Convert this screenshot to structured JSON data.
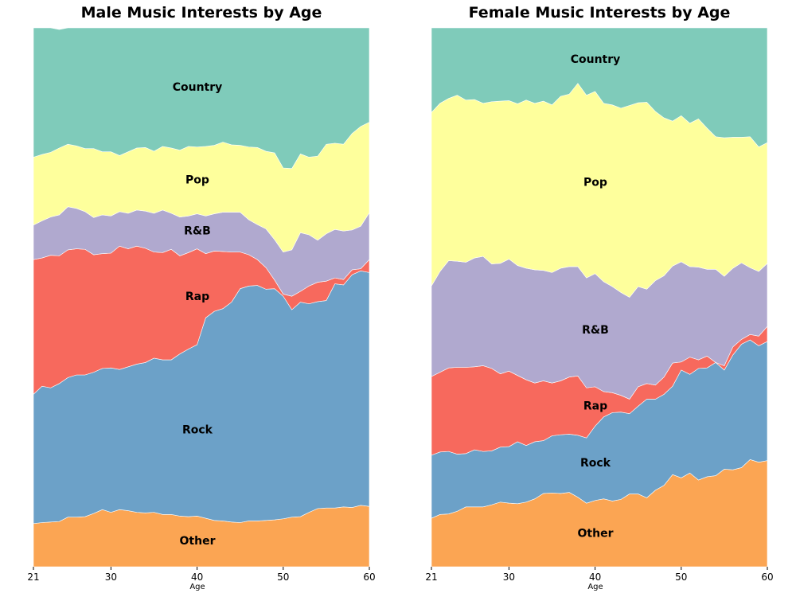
{
  "chart_data": [
    {
      "type": "area",
      "stacked": "percent",
      "title": "Male Music Interests by Age",
      "xlabel": "Age",
      "ylabel": "",
      "xlim": [
        21,
        60
      ],
      "xticks": [
        21,
        30,
        40,
        50,
        60
      ],
      "ylim": [
        0,
        100
      ],
      "x": [
        21,
        22,
        23,
        24,
        25,
        26,
        27,
        28,
        29,
        30,
        31,
        32,
        33,
        34,
        35,
        36,
        37,
        38,
        39,
        40,
        41,
        42,
        43,
        44,
        45,
        46,
        47,
        48,
        49,
        50,
        51,
        52,
        53,
        54,
        55,
        56,
        57,
        58,
        59,
        60
      ],
      "series": [
        {
          "name": "Other",
          "label": "Other",
          "color": "#fba553",
          "values": [
            8.0,
            8.2,
            8.3,
            8.4,
            9.2,
            9.2,
            9.3,
            9.9,
            10.6,
            10.1,
            10.6,
            10.4,
            10.1,
            10.0,
            10.1,
            9.7,
            9.7,
            9.4,
            9.3,
            9.4,
            9.0,
            8.6,
            8.5,
            8.3,
            8.2,
            8.5,
            8.5,
            8.6,
            8.7,
            8.9,
            9.2,
            9.3,
            10.1,
            10.8,
            10.9,
            10.9,
            11.1,
            11.0,
            11.4,
            11.2
          ]
        },
        {
          "name": "Rock",
          "label": "Rock",
          "color": "#6ca1c8",
          "values": [
            24.0,
            25.3,
            24.9,
            25.6,
            25.9,
            26.4,
            26.3,
            26.2,
            26.2,
            26.8,
            26.0,
            26.7,
            27.5,
            27.9,
            28.6,
            28.7,
            28.7,
            30.1,
            31.1,
            31.8,
            37.2,
            38.8,
            39.4,
            40.8,
            43.4,
            43.6,
            43.7,
            42.9,
            42.9,
            41.3,
            38.5,
            39.8,
            38.7,
            38.4,
            38.5,
            41.6,
            41.2,
            43.2,
            43.5,
            43.4
          ]
        },
        {
          "name": "Rap",
          "label": "Rap",
          "color": "#f7695d",
          "values": [
            25.0,
            23.8,
            24.6,
            23.7,
            23.7,
            23.4,
            23.3,
            21.8,
            21.3,
            21.3,
            22.9,
            21.9,
            21.9,
            21.2,
            19.7,
            19.9,
            20.5,
            18.2,
            17.9,
            17.8,
            11.9,
            11.2,
            10.6,
            9.3,
            6.8,
            5.8,
            4.8,
            4.0,
            1.6,
            0.4,
            2.5,
            2.0,
            3.3,
            3.6,
            3.6,
            1.1,
            1.0,
            0.9,
            0.4,
            2.4
          ]
        },
        {
          "name": "R&B",
          "label": "R&B",
          "color": "#b0a9cf",
          "values": [
            6.4,
            6.9,
            7.1,
            7.6,
            8.0,
            7.5,
            7.0,
            6.9,
            7.2,
            6.9,
            6.4,
            6.6,
            6.7,
            6.9,
            7.2,
            7.9,
            6.7,
            7.2,
            6.8,
            6.5,
            7.0,
            6.9,
            7.3,
            7.4,
            7.4,
            6.5,
            6.5,
            7.2,
            7.5,
            7.8,
            8.6,
            10.9,
            9.5,
            7.8,
            8.8,
            9.0,
            9.0,
            7.4,
            7.9,
            8.7
          ]
        },
        {
          "name": "Pop",
          "label": "Pop",
          "color": "#feff9c",
          "values": [
            12.6,
            12.3,
            12.0,
            12.4,
            11.6,
            11.6,
            11.7,
            12.8,
            11.7,
            11.9,
            10.4,
            11.4,
            11.5,
            11.8,
            11.5,
            11.8,
            12.1,
            12.4,
            12.9,
            12.4,
            12.9,
            12.7,
            13.0,
            12.5,
            12.4,
            13.5,
            14.3,
            14.4,
            16.1,
            15.6,
            15.1,
            14.6,
            14.4,
            15.6,
            16.6,
            16.0,
            16.1,
            17.9,
            18.5,
            16.8
          ]
        },
        {
          "name": "Country",
          "label": "Country",
          "color": "#7fcbba",
          "values": [
            24.0,
            23.5,
            23.1,
            22.0,
            21.6,
            21.9,
            22.4,
            22.4,
            23.0,
            23.0,
            23.7,
            23.0,
            22.3,
            22.2,
            22.9,
            22.0,
            22.3,
            22.7,
            22.0,
            22.1,
            22.0,
            21.8,
            21.2,
            21.7,
            21.8,
            22.1,
            22.2,
            22.9,
            23.2,
            26.0,
            26.1,
            23.4,
            24.0,
            23.8,
            21.6,
            21.4,
            21.6,
            19.6,
            18.3,
            17.5
          ]
        }
      ]
    },
    {
      "type": "area",
      "stacked": "percent",
      "title": "Female Music Interests by Age",
      "xlabel": "Age",
      "ylabel": "",
      "xlim": [
        21,
        60
      ],
      "xticks": [
        21,
        30,
        40,
        50,
        60
      ],
      "ylim": [
        0,
        100
      ],
      "x": [
        21,
        22,
        23,
        24,
        25,
        26,
        27,
        28,
        29,
        30,
        31,
        32,
        33,
        34,
        35,
        36,
        37,
        38,
        39,
        40,
        41,
        42,
        43,
        44,
        45,
        46,
        47,
        48,
        49,
        50,
        51,
        52,
        53,
        54,
        55,
        56,
        57,
        58,
        59,
        60
      ],
      "series": [
        {
          "name": "Other",
          "label": "Other",
          "color": "#fba553",
          "values": [
            9.0,
            9.7,
            9.8,
            10.3,
            11.1,
            11.1,
            11.1,
            11.5,
            12.0,
            11.8,
            11.7,
            12.0,
            12.6,
            13.6,
            13.7,
            13.6,
            13.8,
            12.9,
            11.8,
            12.3,
            12.6,
            12.2,
            12.5,
            13.5,
            13.5,
            12.8,
            14.2,
            15.1,
            17.1,
            16.5,
            17.4,
            16.1,
            16.7,
            16.9,
            18.1,
            18.0,
            18.4,
            19.9,
            19.4,
            19.7
          ]
        },
        {
          "name": "Rock",
          "label": "Rock",
          "color": "#6ca1c8",
          "values": [
            11.7,
            11.6,
            11.6,
            10.6,
            9.9,
            10.6,
            10.3,
            10.0,
            10.2,
            10.5,
            11.5,
            10.5,
            10.6,
            9.8,
            10.6,
            10.9,
            10.8,
            11.5,
            12.1,
            13.8,
            15.2,
            16.4,
            16.2,
            14.9,
            16.3,
            18.3,
            16.9,
            16.9,
            16.4,
            20.0,
            18.3,
            20.7,
            20.2,
            21.0,
            18.4,
            21.3,
            22.9,
            22.2,
            21.6,
            22.1
          ]
        },
        {
          "name": "Rap",
          "label": "Rap",
          "color": "#f7695d",
          "values": [
            14.6,
            14.8,
            15.5,
            16.1,
            16.0,
            15.4,
            15.9,
            15.3,
            13.6,
            14.0,
            12.3,
            12.2,
            10.9,
            11.1,
            9.8,
            10.0,
            10.6,
            11.0,
            9.3,
            7.3,
            4.7,
            3.7,
            3.1,
            2.7,
            3.6,
            2.9,
            2.6,
            3.2,
            4.3,
            1.5,
            3.2,
            1.6,
            2.2,
            0.0,
            0.8,
            1.5,
            0.9,
            1.0,
            1.8,
            2.8
          ]
        },
        {
          "name": "R&B",
          "label": "R&B",
          "color": "#b0a9cf",
          "values": [
            16.8,
            18.7,
            19.9,
            19.7,
            19.5,
            20.2,
            20.3,
            19.4,
            20.5,
            20.8,
            20.4,
            20.7,
            21.0,
            20.5,
            20.5,
            20.9,
            20.5,
            20.3,
            20.4,
            21.0,
            20.4,
            19.7,
            19.1,
            18.9,
            18.6,
            17.5,
            19.4,
            18.8,
            18.0,
            18.6,
            16.8,
            17.2,
            16.1,
            17.3,
            16.6,
            14.6,
            14.2,
            12.4,
            12.0,
            11.7
          ]
        },
        {
          "name": "Pop",
          "label": "Pop",
          "color": "#feff9c",
          "values": [
            32.2,
            31.2,
            30.1,
            30.8,
            30.1,
            29.4,
            28.4,
            30.1,
            30.1,
            29.4,
            30.0,
            31.2,
            30.9,
            31.4,
            31.1,
            31.9,
            32.0,
            34.0,
            33.9,
            33.8,
            33.1,
            33.7,
            34.2,
            35.6,
            34.1,
            34.7,
            31.4,
            29.3,
            26.9,
            27.1,
            26.6,
            27.5,
            26.2,
            24.6,
            25.7,
            24.3,
            23.3,
            24.3,
            23.1,
            22.4
          ]
        },
        {
          "name": "Country",
          "label": "Country",
          "color": "#7fcbba",
          "values": [
            15.7,
            14.0,
            13.1,
            12.5,
            13.4,
            13.3,
            14.0,
            13.7,
            13.6,
            13.5,
            14.1,
            13.4,
            14.0,
            13.6,
            14.3,
            12.7,
            12.3,
            10.3,
            12.5,
            11.8,
            14.0,
            14.3,
            14.9,
            14.4,
            13.9,
            13.8,
            15.5,
            16.7,
            17.3,
            16.3,
            17.7,
            16.9,
            18.6,
            20.2,
            20.4,
            20.3,
            20.3,
            20.2,
            22.1,
            21.3
          ]
        }
      ]
    }
  ]
}
